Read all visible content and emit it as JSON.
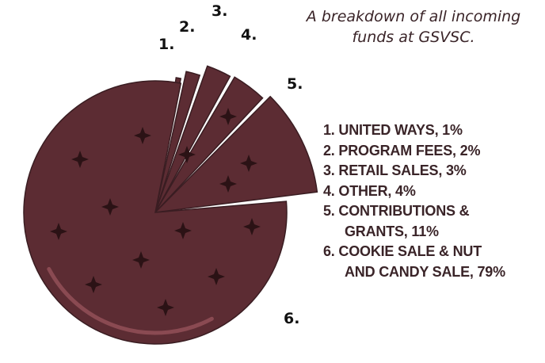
{
  "chart_data": {
    "type": "pie",
    "subtitle_lines": [
      "A breakdown of all incoming",
      "funds at GSVSC."
    ],
    "slices": [
      {
        "num": "1.",
        "legend_lines": [
          "1. UNITED WAYS, 1%"
        ],
        "value": 1
      },
      {
        "num": "2.",
        "legend_lines": [
          "2. PROGRAM FEES, 2%"
        ],
        "value": 2
      },
      {
        "num": "3.",
        "legend_lines": [
          "3. RETAIL SALES, 3%"
        ],
        "value": 3
      },
      {
        "num": "4.",
        "legend_lines": [
          "4. OTHER, 4%"
        ],
        "value": 4
      },
      {
        "num": "5.",
        "legend_lines": [
          "5. CONTRIBUTIONS &",
          "GRANTS, 11%"
        ],
        "value": 11
      },
      {
        "num": "6.",
        "legend_lines": [
          "6. COOKIE SALE & NUT",
          "AND CANDY SALE, 79%"
        ],
        "value": 79
      }
    ],
    "colors": {
      "fill": "#5c2c33",
      "outline": "#3a1d22",
      "accent": "#8a4a52",
      "text": "#3a2428"
    }
  }
}
